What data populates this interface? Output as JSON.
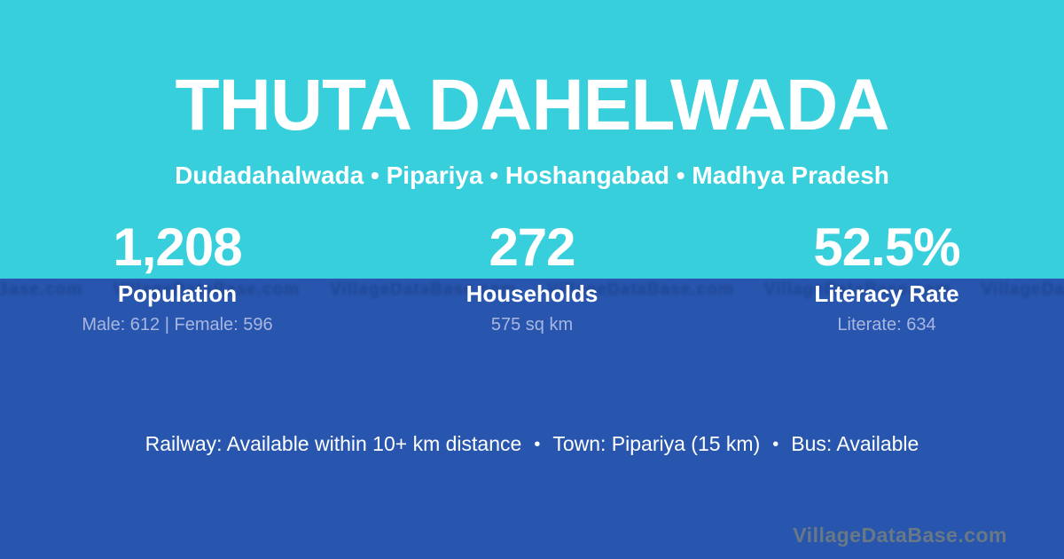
{
  "card": {
    "title": "THUTA DAHELWADA",
    "subtitle": "Dudadahalwada • Pipariya • Hoshangabad • Madhya Pradesh",
    "stats": [
      {
        "value": "1,208",
        "label": "Population",
        "detail": "Male: 612 | Female: 596"
      },
      {
        "value": "272",
        "label": "Households",
        "detail": "575 sq km"
      },
      {
        "value": "52.5%",
        "label": "Literacy Rate",
        "detail": "Literate: 634"
      }
    ],
    "facts": [
      "Railway: Available within 10+ km distance",
      "Town: Pipariya (15 km)",
      "Bus: Available"
    ],
    "facts_separator": "•",
    "watermark": "VillageDataBase.com",
    "colors": {
      "top_bg": "#38cfdd",
      "bottom_bg": "#2856ae",
      "text": "#ffffff",
      "detail_text": "#a9b6e0",
      "watermark_text": "#6f7b82"
    }
  }
}
